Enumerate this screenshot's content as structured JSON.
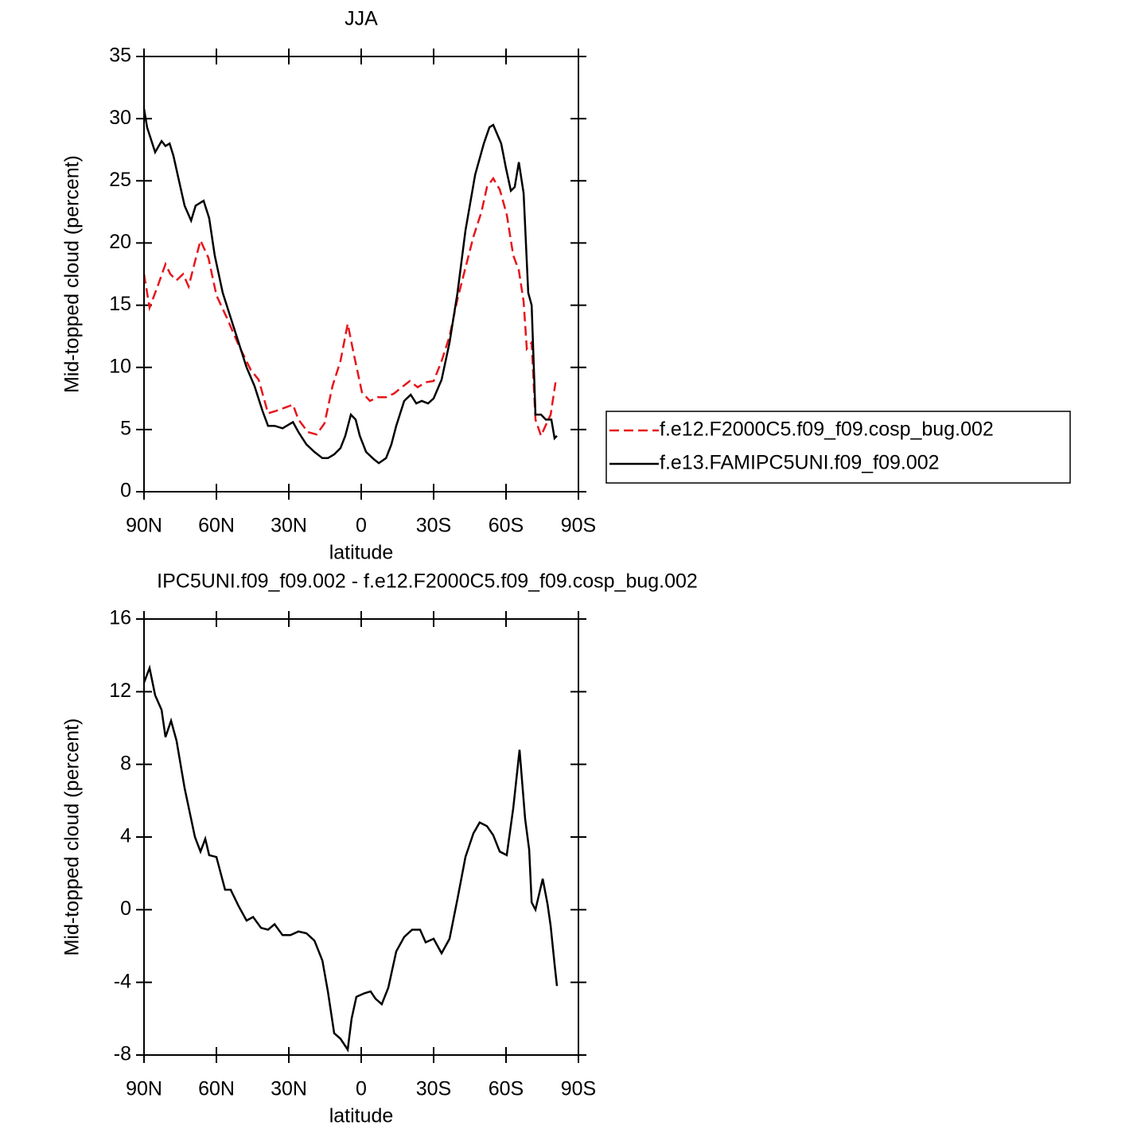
{
  "chart_data": [
    {
      "type": "line",
      "title": "JJA",
      "x_label": "latitude",
      "y_label": "Mid-topped cloud (percent)",
      "xlim": [
        90,
        -90
      ],
      "xticks": [
        {
          "value": 90,
          "label": "90N"
        },
        {
          "value": 60,
          "label": "60N"
        },
        {
          "value": 30,
          "label": "30N"
        },
        0,
        {
          "value": -30,
          "label": "30S"
        },
        {
          "value": -60,
          "label": "60S"
        },
        {
          "value": -90,
          "label": "90S"
        }
      ],
      "ylim": [
        0,
        35
      ],
      "yticks": [
        0,
        5,
        10,
        15,
        20,
        25,
        30,
        35
      ],
      "series": [
        {
          "name": "f.e12.F2000C5.f09_f09.cosp_bug.002",
          "color": "#e8141b",
          "dash": true,
          "x": [
            90,
            87.7,
            84.4,
            81.1,
            79.1,
            76.5,
            73.8,
            71.5,
            68.9,
            66.6,
            63.3,
            60,
            55.7,
            50.8,
            45.8,
            42.5,
            38.6,
            35.3,
            31,
            28.3,
            26,
            22.1,
            18.5,
            15.2,
            11.9,
            8.6,
            5.6,
            3,
            -0.3,
            -3.6,
            -6.9,
            -10.3,
            -13.6,
            -16.8,
            -20.1,
            -23.4,
            -26.7,
            -30,
            -33.3,
            -36.6,
            -39.9,
            -43.2,
            -46.5,
            -49.8,
            -52.1,
            -54.7,
            -57.4,
            -60.3,
            -63,
            -65.3,
            -67.3,
            -68.6,
            -70.6,
            -72.2,
            -74.5,
            -76.8,
            -78.5,
            -80.5
          ],
          "values": [
            17.5,
            14.8,
            16.5,
            18.3,
            17.5,
            17,
            17.5,
            16.5,
            18.5,
            20.2,
            18.8,
            15.8,
            14,
            11.8,
            9.8,
            9,
            6.3,
            6.5,
            6.8,
            7,
            5.8,
            4.8,
            4.6,
            5.5,
            8.5,
            10.5,
            13.5,
            11,
            8,
            7.3,
            7.6,
            7.6,
            7.9,
            8.4,
            8.9,
            8.4,
            8.8,
            8.9,
            10.5,
            12.5,
            15.5,
            18,
            20.5,
            22.5,
            24.5,
            25.2,
            24.3,
            22.3,
            19,
            17.8,
            15.3,
            11.5,
            12,
            5.8,
            4.5,
            5.5,
            6.2,
            8.8
          ]
        },
        {
          "name": "f.e13.FAMIPC5UNI.f09_f09.002",
          "color": "#000000",
          "dash": false,
          "x": [
            90,
            88.7,
            85.4,
            82.7,
            81.1,
            79.4,
            77.8,
            75.5,
            73.2,
            70.5,
            68.6,
            65.3,
            63,
            60.7,
            57.4,
            54.1,
            50.8,
            47.5,
            44.2,
            40.9,
            38.6,
            35.9,
            32.6,
            28.3,
            26,
            22.7,
            19.4,
            16.1,
            13.8,
            11.2,
            8.6,
            6.6,
            4.3,
            2.3,
            0.6,
            -2,
            -5.3,
            -7.3,
            -10.3,
            -12.5,
            -14.5,
            -17.8,
            -20.5,
            -22.8,
            -25.1,
            -27.7,
            -30,
            -33.3,
            -36.6,
            -39.9,
            -43.2,
            -47.2,
            -50.8,
            -53.1,
            -54.7,
            -58,
            -60,
            -62,
            -63.6,
            -65.3,
            -67.3,
            -69.2,
            -70.6,
            -72.2,
            -74.5,
            -76.5,
            -78.8,
            -80.1,
            -81.1
          ],
          "values": [
            30.8,
            29.3,
            27.3,
            28.2,
            27.8,
            28,
            27,
            25,
            23,
            21.8,
            23,
            23.4,
            22,
            19,
            16,
            14,
            12,
            10,
            8.5,
            6.5,
            5.3,
            5.3,
            5.1,
            5.6,
            4.8,
            3.8,
            3.2,
            2.7,
            2.7,
            3,
            3.5,
            4.5,
            6.2,
            5.8,
            4.5,
            3.2,
            2.6,
            2.3,
            2.7,
            3.8,
            5.3,
            7.3,
            7.8,
            7.1,
            7.3,
            7.1,
            7.5,
            9,
            12,
            16,
            21,
            25.5,
            28,
            29.3,
            29.5,
            28,
            26,
            24.2,
            24.5,
            26.5,
            24,
            16,
            15,
            6.2,
            6.2,
            5.8,
            5.8,
            4.3,
            4.5
          ]
        }
      ]
    },
    {
      "type": "line",
      "title": "IPC5UNI.f09_f09.002 - f.e12.F2000C5.f09_f09.cosp_bug.002",
      "x_label": "latitude",
      "y_label": "Mid-topped cloud (percent)",
      "xlim": [
        90,
        -90
      ],
      "xticks": [
        {
          "value": 90,
          "label": "90N"
        },
        {
          "value": 60,
          "label": "60N"
        },
        {
          "value": 30,
          "label": "30N"
        },
        0,
        {
          "value": -30,
          "label": "30S"
        },
        {
          "value": -60,
          "label": "60S"
        },
        {
          "value": -90,
          "label": "90S"
        }
      ],
      "ylim": [
        -8,
        16
      ],
      "yticks": [
        -8,
        -4,
        0,
        4,
        8,
        12,
        16
      ],
      "series": [
        {
          "color": "#000000",
          "dash": false,
          "x": [
            90,
            87.7,
            85.4,
            82.7,
            81.1,
            78.8,
            76.5,
            73.2,
            68.9,
            66.6,
            64.6,
            63,
            60,
            56.4,
            54.1,
            50.8,
            47.5,
            44.8,
            41.5,
            38.6,
            35.9,
            32.6,
            29.3,
            26,
            22.7,
            19.4,
            16.1,
            13.8,
            11.2,
            8.6,
            5.6,
            4,
            2,
            -1.3,
            -3.9,
            -5.9,
            -8.5,
            -11.2,
            -14.5,
            -17.8,
            -21.1,
            -24.4,
            -26.7,
            -30,
            -33.3,
            -36.6,
            -39.9,
            -43.2,
            -46.5,
            -49.1,
            -52.1,
            -54.7,
            -57.4,
            -60.3,
            -63,
            -65.6,
            -67.9,
            -69.6,
            -70.6,
            -72.2,
            -75.2,
            -77.2,
            -78.5,
            -80.1,
            -81.1
          ],
          "values": [
            12.5,
            13.3,
            11.8,
            11,
            9.5,
            10.4,
            9.3,
            6.7,
            4,
            3.2,
            3.9,
            3,
            2.9,
            1.1,
            1.1,
            0.2,
            -0.6,
            -0.4,
            -1,
            -1.1,
            -0.8,
            -1.4,
            -1.4,
            -1.2,
            -1.3,
            -1.7,
            -2.8,
            -4.5,
            -6.8,
            -7.1,
            -7.7,
            -6,
            -4.8,
            -4.6,
            -4.5,
            -4.9,
            -5.2,
            -4.3,
            -2.3,
            -1.5,
            -1.1,
            -1.1,
            -1.8,
            -1.6,
            -2.4,
            -1.6,
            0.6,
            2.9,
            4.2,
            4.8,
            4.6,
            4.1,
            3.2,
            3,
            5.6,
            8.8,
            5,
            3.3,
            0.4,
            0,
            1.7,
            0.3,
            -0.9,
            -3,
            -4.2
          ]
        }
      ]
    }
  ]
}
